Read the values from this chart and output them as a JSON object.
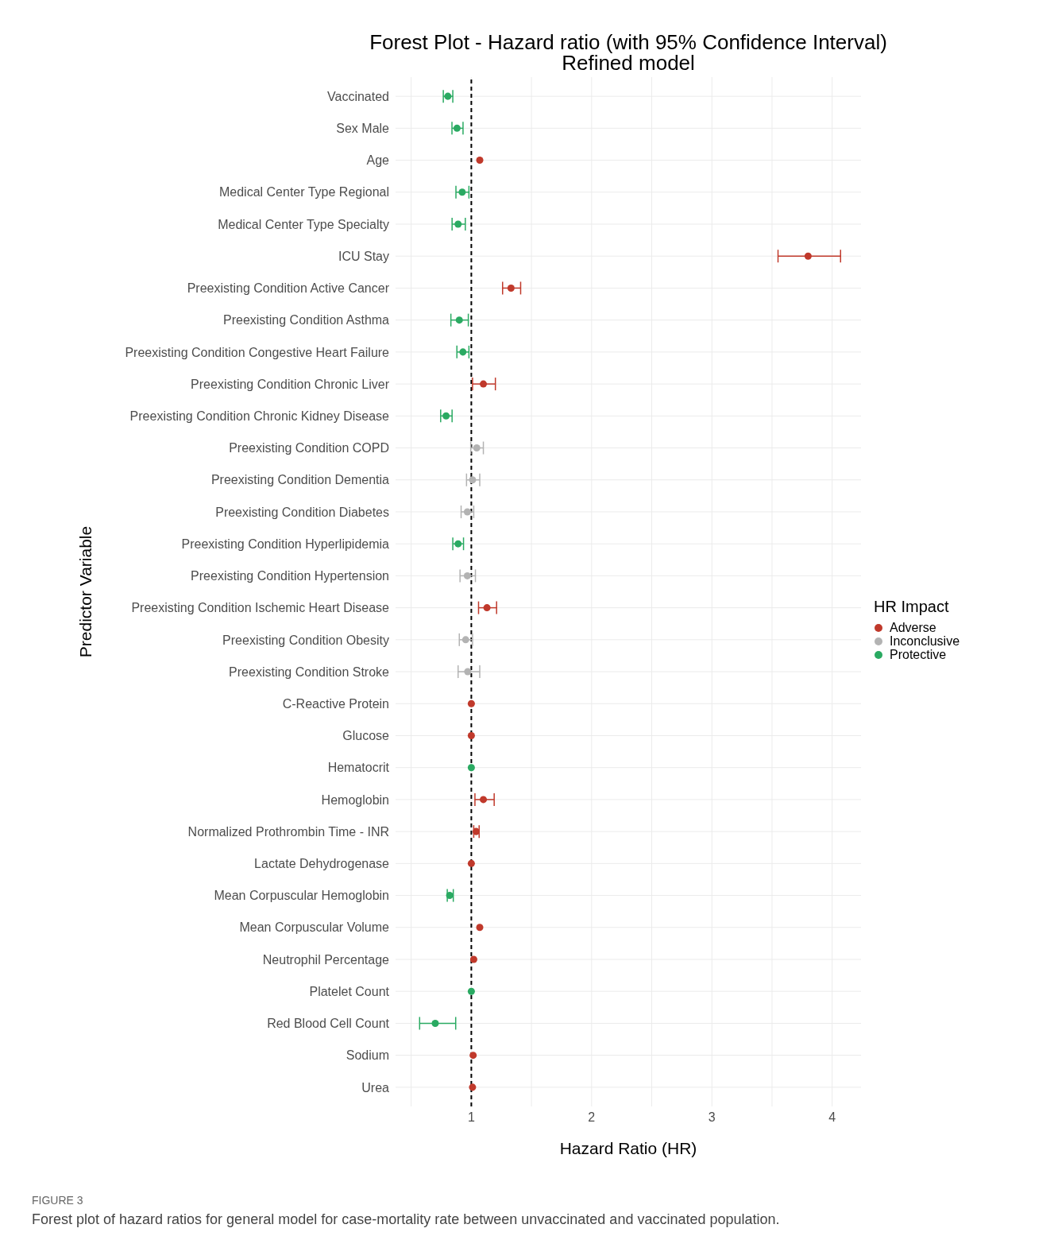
{
  "chart_data": {
    "type": "scatter",
    "orientation": "horizontal",
    "title": "Forest Plot - Hazard ratio (with 95% Confidence Interval)",
    "subtitle": "Refined model",
    "xlabel": "Hazard Ratio (HR)",
    "ylabel": "Predictor Variable",
    "legend_title": "HR Impact",
    "legend": "right",
    "grid": true,
    "marker": "circle",
    "categories": [
      "Vaccinated",
      "Sex Male",
      "Age",
      "Medical Center Type Regional",
      "Medical Center Type Specialty",
      "ICU Stay",
      "Preexisting Condition Active Cancer",
      "Preexisting Condition Asthma",
      "Preexisting Condition Congestive Heart Failure",
      "Preexisting Condition Chronic Liver",
      "Preexisting Condition Chronic Kidney Disease",
      "Preexisting Condition COPD",
      "Preexisting Condition Dementia",
      "Preexisting Condition Diabetes",
      "Preexisting Condition Hyperlipidemia",
      "Preexisting Condition Hypertension",
      "Preexisting Condition Ischemic Heart Disease",
      "Preexisting Condition Obesity",
      "Preexisting Condition Stroke",
      "C-Reactive Protein",
      "Glucose",
      "Hematocrit",
      "Hemoglobin",
      "Normalized Prothrombin Time - INR",
      "Lactate Dehydrogenase",
      "Mean Corpuscular Hemoglobin",
      "Mean Corpuscular Volume",
      "Neutrophil Percentage",
      "Platelet Count",
      "Red Blood Cell Count",
      "Sodium",
      "Urea"
    ],
    "xlim": [
      0.37,
      4.24
    ],
    "xticks": [
      {
        "value": 0.5,
        "label": null
      },
      1,
      {
        "value": 1.5,
        "label": null
      },
      2,
      {
        "value": 2.5,
        "label": null
      },
      3,
      {
        "value": 3.5,
        "label": null
      },
      4
    ],
    "ref_lines": [
      {
        "axis": "x",
        "value": 1,
        "line_style": "dashed",
        "color": "#000000"
      }
    ],
    "series": [
      {
        "name": "Adverse",
        "color": "#c0392b",
        "values": [
          null,
          null,
          1.07,
          null,
          null,
          3.8,
          1.33,
          null,
          null,
          1.1,
          null,
          null,
          null,
          null,
          null,
          null,
          1.13,
          null,
          null,
          1.0,
          1.0,
          null,
          1.1,
          1.04,
          1.0,
          null,
          1.07,
          1.02,
          null,
          null,
          1.015,
          1.01
        ],
        "errors": [
          null,
          null,
          null,
          null,
          null,
          [
            3.55,
            4.07
          ],
          [
            1.26,
            1.41
          ],
          null,
          null,
          [
            1.01,
            1.2
          ],
          null,
          null,
          null,
          null,
          null,
          null,
          [
            1.06,
            1.21
          ],
          null,
          null,
          null,
          null,
          null,
          [
            1.03,
            1.19
          ],
          [
            1.02,
            1.065
          ],
          null,
          null,
          null,
          null,
          null,
          null,
          null,
          null
        ]
      },
      {
        "name": "Inconclusive",
        "color": "#b3b3b3",
        "values": [
          null,
          null,
          null,
          null,
          null,
          null,
          null,
          null,
          null,
          null,
          null,
          1.045,
          1.01,
          0.967,
          null,
          0.967,
          null,
          0.953,
          0.97,
          null,
          null,
          null,
          null,
          null,
          null,
          null,
          null,
          null,
          null,
          null,
          null,
          null
        ],
        "errors": [
          null,
          null,
          null,
          null,
          null,
          null,
          null,
          null,
          null,
          null,
          null,
          [
            0.995,
            1.1
          ],
          [
            0.96,
            1.07
          ],
          [
            0.915,
            1.02
          ],
          null,
          [
            0.906,
            1.034
          ],
          null,
          [
            0.9,
            1.01
          ],
          [
            0.89,
            1.07
          ],
          null,
          null,
          null,
          null,
          null,
          null,
          null,
          null,
          null,
          null,
          null,
          null,
          null
        ]
      },
      {
        "name": "Protective",
        "color": "#2aaa62",
        "values": [
          0.805,
          0.881,
          null,
          0.924,
          0.89,
          null,
          null,
          0.9,
          0.93,
          null,
          0.79,
          null,
          null,
          null,
          0.89,
          null,
          null,
          null,
          null,
          null,
          null,
          1.0,
          null,
          null,
          null,
          0.82,
          null,
          null,
          1.0,
          0.7,
          null,
          null
        ],
        "errors": [
          [
            0.767,
            0.846
          ],
          [
            0.839,
            0.931
          ],
          null,
          [
            0.872,
            0.98
          ],
          [
            0.84,
            0.95
          ],
          null,
          null,
          [
            0.83,
            0.975
          ],
          [
            0.88,
            0.98
          ],
          null,
          [
            0.745,
            0.84
          ],
          null,
          null,
          null,
          [
            0.846,
            0.935
          ],
          null,
          null,
          null,
          null,
          null,
          null,
          null,
          null,
          null,
          null,
          [
            0.8,
            0.85
          ],
          null,
          null,
          null,
          [
            0.57,
            0.87
          ],
          null,
          null
        ]
      }
    ],
    "annotations": [
      "FIGURE 3",
      "Forest plot of hazard ratios for general model for case-mortality rate between unvaccinated and vaccinated population."
    ]
  }
}
